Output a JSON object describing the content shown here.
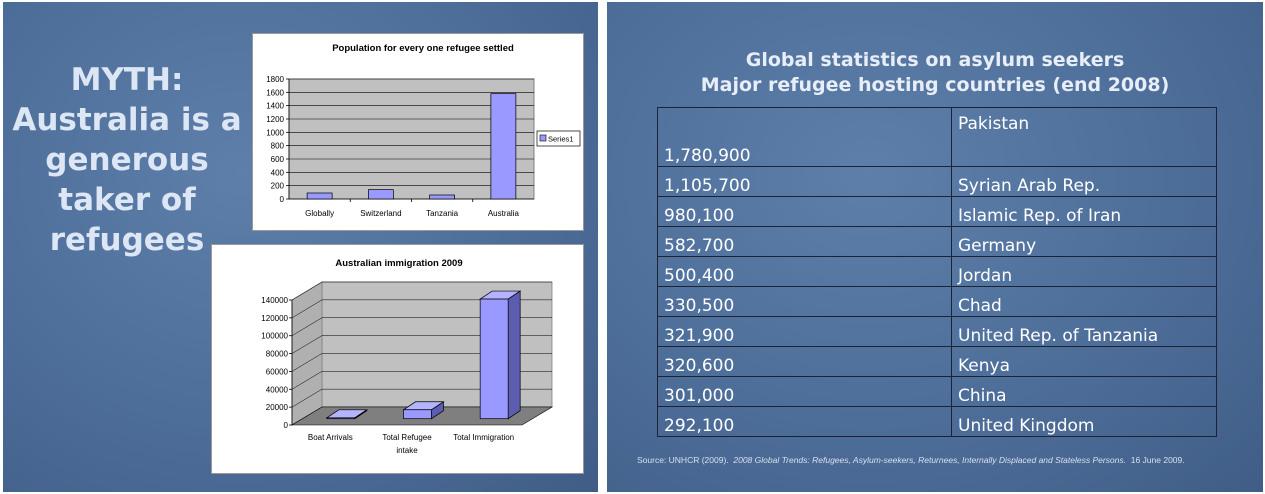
{
  "left_slide": {
    "myth_lines": [
      "MYTH:",
      "Australia is a",
      "generous",
      "taker of",
      "refugees"
    ]
  },
  "chart_data": [
    {
      "type": "bar",
      "title": "Population for every one refugee settled",
      "categories": [
        "Globally",
        "Switzerland",
        "Tanzania",
        "Australia"
      ],
      "series": [
        {
          "name": "Series1",
          "values": [
            90,
            140,
            60,
            1580
          ]
        }
      ],
      "ylim": [
        0,
        1800
      ],
      "yticks": [
        0,
        200,
        400,
        600,
        800,
        1000,
        1200,
        1400,
        1600,
        1800
      ],
      "grid": true,
      "legend": "right",
      "xlabel": "",
      "ylabel": "",
      "colors": {
        "bar": "#9999ff",
        "plot_bg": "#c0c0c0"
      }
    },
    {
      "type": "bar",
      "title": "Australian immigration 2009",
      "categories": [
        "Boat Arrivals",
        "Total Refugee intake",
        "Total Immigration"
      ],
      "series": [
        {
          "values": [
            1000,
            10000,
            134000
          ]
        }
      ],
      "ylim": [
        0,
        140000
      ],
      "yticks": [
        0,
        20000,
        40000,
        60000,
        80000,
        100000,
        120000,
        140000
      ],
      "grid": true,
      "xlabel": "",
      "ylabel": "",
      "colors": {
        "bar": "#9999ff",
        "floor": "#7f7f7f",
        "wall": "#c0c0c0"
      }
    }
  ],
  "right_slide": {
    "title_lines": [
      "Global statistics on asylum seekers",
      "Major refugee hosting countries (end 2008)"
    ],
    "table": [
      {
        "value": "1,780,900",
        "country": "Pakistan"
      },
      {
        "value": "1,105,700",
        "country": "Syrian Arab Rep."
      },
      {
        "value": "980,100",
        "country": "Islamic Rep. of Iran"
      },
      {
        "value": "582,700",
        "country": "Germany"
      },
      {
        "value": "500,400",
        "country": "Jordan"
      },
      {
        "value": "330,500",
        "country": "Chad"
      },
      {
        "value": "321,900",
        "country": "United Rep. of Tanzania"
      },
      {
        "value": "320,600",
        "country": "Kenya"
      },
      {
        "value": "301,000",
        "country": "China"
      },
      {
        "value": "292,100",
        "country": "United Kingdom"
      }
    ],
    "source_prefix": "Source: UNHCR (2009).",
    "source_title": "2008 Global Trends: Refugees, Asylum-seekers, Returnees, Internally Displaced and Stateless Persons.",
    "source_suffix": "16 June 2009."
  }
}
